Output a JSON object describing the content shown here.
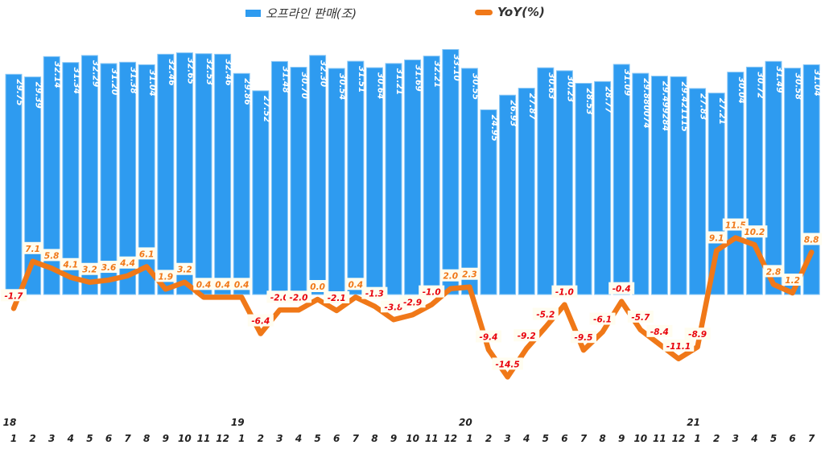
{
  "chart_data": {
    "type": "bar+line",
    "categories": [
      "1",
      "2",
      "3",
      "4",
      "5",
      "6",
      "7",
      "8",
      "9",
      "10",
      "11",
      "12",
      "1",
      "2",
      "3",
      "4",
      "5",
      "6",
      "7",
      "8",
      "9",
      "10",
      "11",
      "12",
      "1",
      "2",
      "3",
      "4",
      "5",
      "6",
      "7",
      "8",
      "9",
      "10",
      "11",
      "12",
      "1",
      "2",
      "3",
      "4",
      "5",
      "6",
      "7"
    ],
    "year_labels": [
      {
        "index": 0,
        "label": "18"
      },
      {
        "index": 12,
        "label": "19"
      },
      {
        "index": 24,
        "label": "20"
      },
      {
        "index": 36,
        "label": "21"
      }
    ],
    "series": [
      {
        "name": "오프라인 판매(조)",
        "type": "bar",
        "axis": "left",
        "color": "#2E9BF0",
        "values": [
          29.75,
          29.39,
          32.14,
          31.34,
          32.29,
          31.2,
          31.38,
          31.04,
          32.46,
          32.65,
          32.53,
          32.46,
          29.86,
          27.52,
          31.48,
          30.7,
          32.3,
          30.54,
          31.51,
          30.64,
          31.21,
          31.69,
          32.21,
          33.1,
          30.55,
          24.95,
          26.93,
          27.87,
          30.63,
          30.23,
          28.53,
          28.77,
          31.09,
          29.880074,
          29.499284,
          29.421115,
          27.83,
          27.21,
          30.04,
          30.72,
          31.49,
          30.58,
          31.04
        ],
        "labels": [
          "29.75",
          "29.39",
          "32.14",
          "31.34",
          "32.29",
          "31.20",
          "31.38",
          "31.04",
          "32.46",
          "32.65",
          "32.53",
          "32.46",
          "29.86",
          "27.52",
          "31.48",
          "30.70",
          "32.30",
          "30.54",
          "31.51",
          "30.64",
          "31.21",
          "31.69",
          "32.21",
          "33.10",
          "30.55",
          "24.95",
          "26.93",
          "27.87",
          "30.63",
          "30.23",
          "28.53",
          "28.77",
          "31.09",
          "29.880074",
          "29.499284",
          "29.421115",
          "27.83",
          "27.21",
          "30.04",
          "30.72",
          "31.49",
          "30.58",
          "31.04"
        ]
      },
      {
        "name": "YoY(%)",
        "type": "line",
        "axis": "right",
        "color": "#F07818",
        "values": [
          -1.7,
          7.1,
          5.8,
          4.1,
          3.2,
          3.6,
          4.4,
          6.1,
          1.9,
          3.2,
          0.4,
          0.4,
          0.4,
          -6.4,
          -2.0,
          -2.0,
          0.0,
          -2.1,
          0.4,
          -1.3,
          -3.8,
          -2.9,
          -1.0,
          2.0,
          2.3,
          -9.4,
          -14.5,
          -9.2,
          -5.2,
          -1.0,
          -9.5,
          -6.1,
          -0.4,
          -5.7,
          -8.4,
          -11.1,
          -8.9,
          9.1,
          11.5,
          10.2,
          2.8,
          1.2,
          8.8
        ],
        "labels": [
          "-1.7",
          "7.1",
          "5.8",
          "4.1",
          "3.2",
          "3.6",
          "4.4",
          "6.1",
          "1.9",
          "3.2",
          "0.4",
          "0.4",
          "0.4",
          "-6.4",
          "-2.0",
          "-2.0",
          "0.0",
          "-2.1",
          "0.4",
          "-1.3",
          "-3.8",
          "-2.9",
          "-1.0",
          "2.0",
          "2.3",
          "-9.4",
          "-14.5",
          "-9.2",
          "-5.2",
          "-1.0",
          "-9.5",
          "-6.1",
          "-0.4",
          "-5.7",
          "-8.4",
          "-11.1",
          "-8.9",
          "9.1",
          "11.5",
          "10.2",
          "2.8",
          "1.2",
          "8.8"
        ]
      }
    ],
    "positive_label_color": "#F07818",
    "negative_label_color": "#E8000B",
    "legend_placement": "top",
    "grid": false
  }
}
